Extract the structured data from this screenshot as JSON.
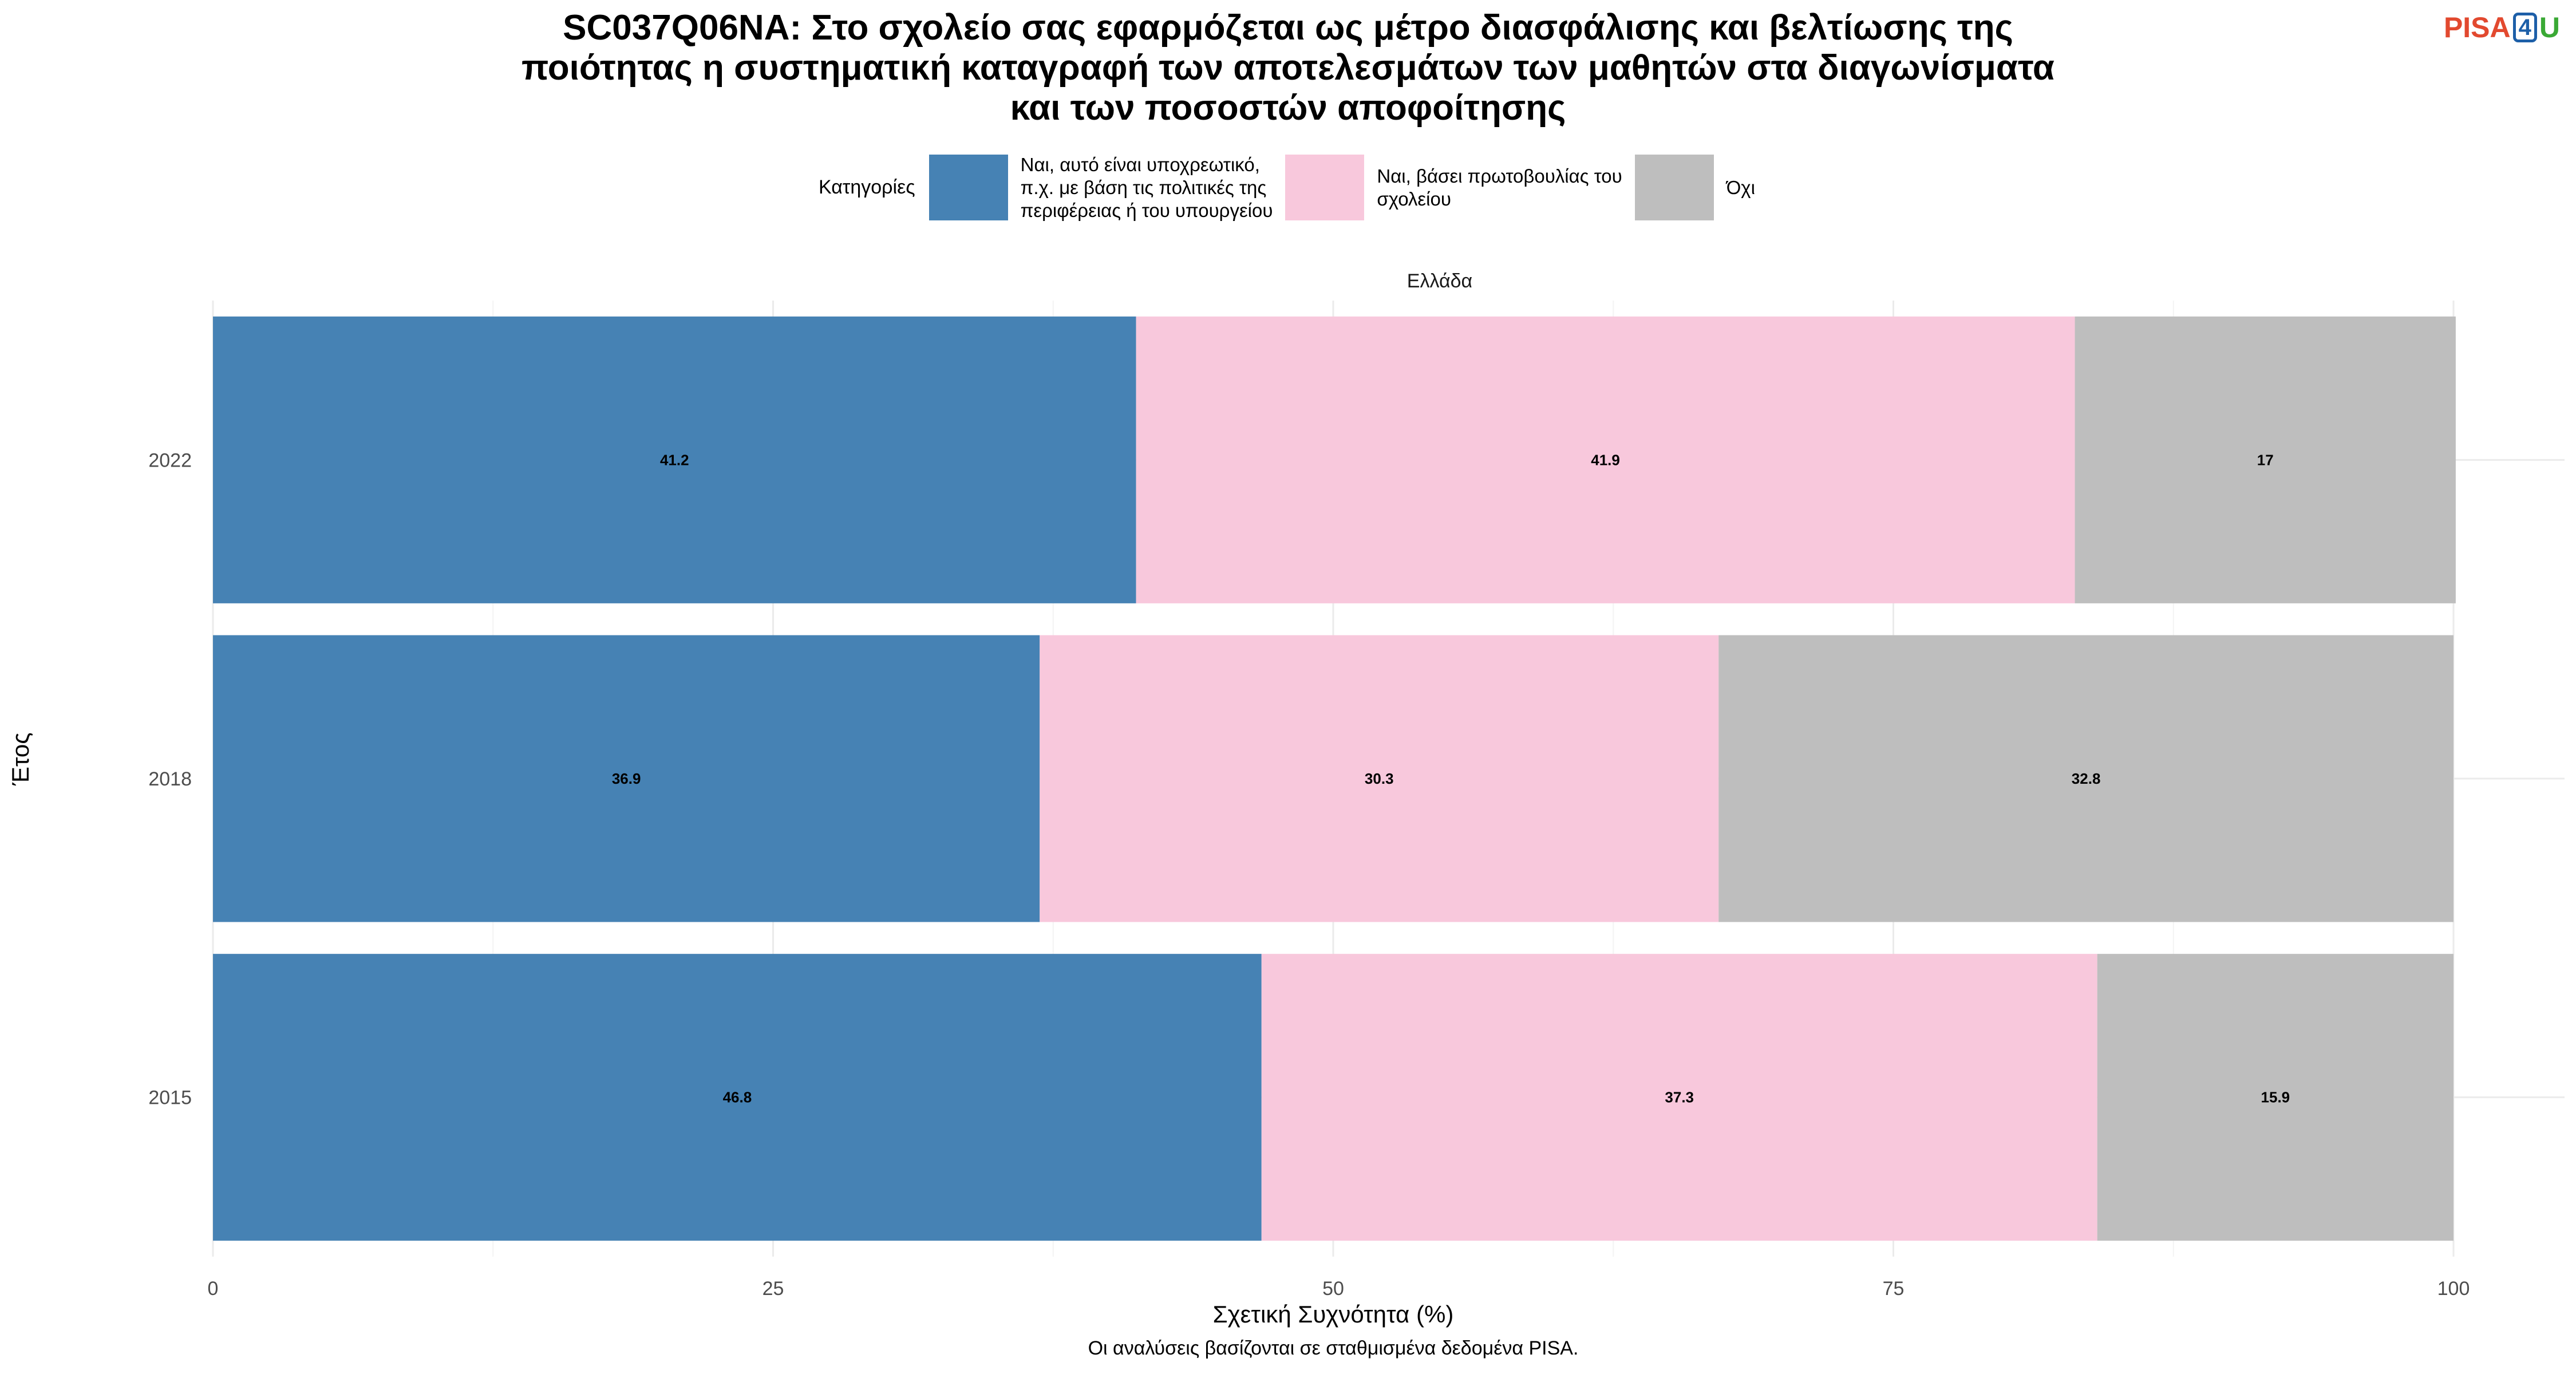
{
  "title_lines": [
    "SC037Q06NA: Στο σχολείο σας εφαρμόζεται ως μέτρο διασφάλισης και βελτίωσης της",
    "ποιότητας η συστηματική καταγραφή των αποτελεσμάτων των μαθητών στα διαγωνίσματα",
    "και των ποσοστών αποφοίτησης"
  ],
  "logo": {
    "part1": "PISA",
    "part2": "4",
    "part3": "U"
  },
  "legend": {
    "title": "Κατηγορίες",
    "items": [
      {
        "label": "Ναι, αυτό είναι υποχρεωτικό,\nπ.χ. με βάση τις πολιτικές της\nπεριφέρειας ή του υπουργείου",
        "color": "#4682b4"
      },
      {
        "label": "Ναι, βάσει πρωτοβουλίας του\nσχολείου",
        "color": "#f8c8dc"
      },
      {
        "label": "Όχι",
        "color": "#bebebe"
      }
    ]
  },
  "facet_label": "Ελλάδα",
  "xlabel": "Σχετική Συχνότητα (%)",
  "ylabel": "Έτος",
  "caption": "Οι αναλύσεις βασίζονται σε σταθμισμένα δεδομένα PISA.",
  "chart_data": {
    "type": "bar",
    "orientation": "horizontal",
    "stacked": true,
    "categories": [
      "2022",
      "2018",
      "2015"
    ],
    "series": [
      {
        "name": "Ναι, αυτό είναι υποχρεωτικό, π.χ. με βάση τις πολιτικές της περιφέρειας ή του υπουργείου",
        "color": "#4682b4",
        "values": [
          41.2,
          36.9,
          46.8
        ],
        "labels": [
          "41.2",
          "36.9",
          "46.8"
        ]
      },
      {
        "name": "Ναι, βάσει πρωτοβουλίας του σχολείου",
        "color": "#f8c8dc",
        "values": [
          41.9,
          30.3,
          37.3
        ],
        "labels": [
          "41.9",
          "30.3",
          "37.3"
        ]
      },
      {
        "name": "Όχι",
        "color": "#bebebe",
        "values": [
          17,
          32.8,
          15.9
        ],
        "labels": [
          "17",
          "32.8",
          "15.9"
        ]
      }
    ],
    "xlim": [
      0,
      100
    ],
    "xticks": [
      0,
      25,
      50,
      75,
      100
    ],
    "xtick_labels": [
      "0",
      "25",
      "50",
      "75",
      "100"
    ],
    "xlabel": "Σχετική Συχνότητα (%)",
    "ylabel": "Έτος",
    "grid": true,
    "legend_position": "top"
  }
}
